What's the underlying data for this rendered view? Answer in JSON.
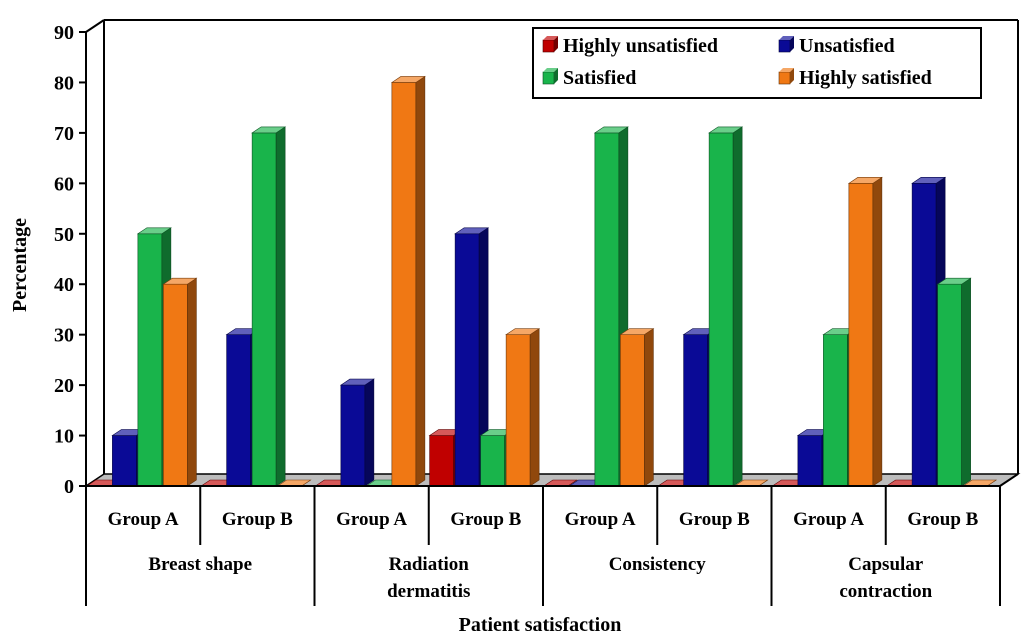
{
  "chart_data": {
    "type": "bar",
    "title": "",
    "xlabel": "Patient satisfaction",
    "ylabel": "Percentage",
    "ylim": [
      0,
      90
    ],
    "y_ticks": [
      0,
      10,
      20,
      30,
      40,
      50,
      60,
      70,
      80,
      90
    ],
    "groups": [
      "Breast shape",
      "Radiation dermatitis",
      "Consistency",
      "Capsular contraction"
    ],
    "group_lines": [
      [
        "Breast shape"
      ],
      [
        "Radiation",
        "dermatitis"
      ],
      [
        "Consistency"
      ],
      [
        "Capsular",
        "contraction"
      ]
    ],
    "categories": [
      "Group A",
      "Group B",
      "Group A",
      "Group B",
      "Group A",
      "Group B",
      "Group A",
      "Group B"
    ],
    "series": [
      {
        "name": "Highly unsatisfied",
        "color": "#c00000",
        "values": [
          0,
          0,
          0,
          10,
          0,
          0,
          0,
          0
        ]
      },
      {
        "name": "Unsatisfied",
        "color": "#0a0a96",
        "values": [
          10,
          30,
          20,
          50,
          0,
          30,
          10,
          60
        ]
      },
      {
        "name": "Satisfied",
        "color": "#19b44b",
        "values": [
          50,
          70,
          0,
          10,
          70,
          70,
          30,
          40
        ]
      },
      {
        "name": "Highly satisfied",
        "color": "#f07814",
        "values": [
          40,
          0,
          80,
          30,
          30,
          0,
          60,
          0
        ]
      }
    ],
    "legend_position": "top-right",
    "grid": false
  }
}
